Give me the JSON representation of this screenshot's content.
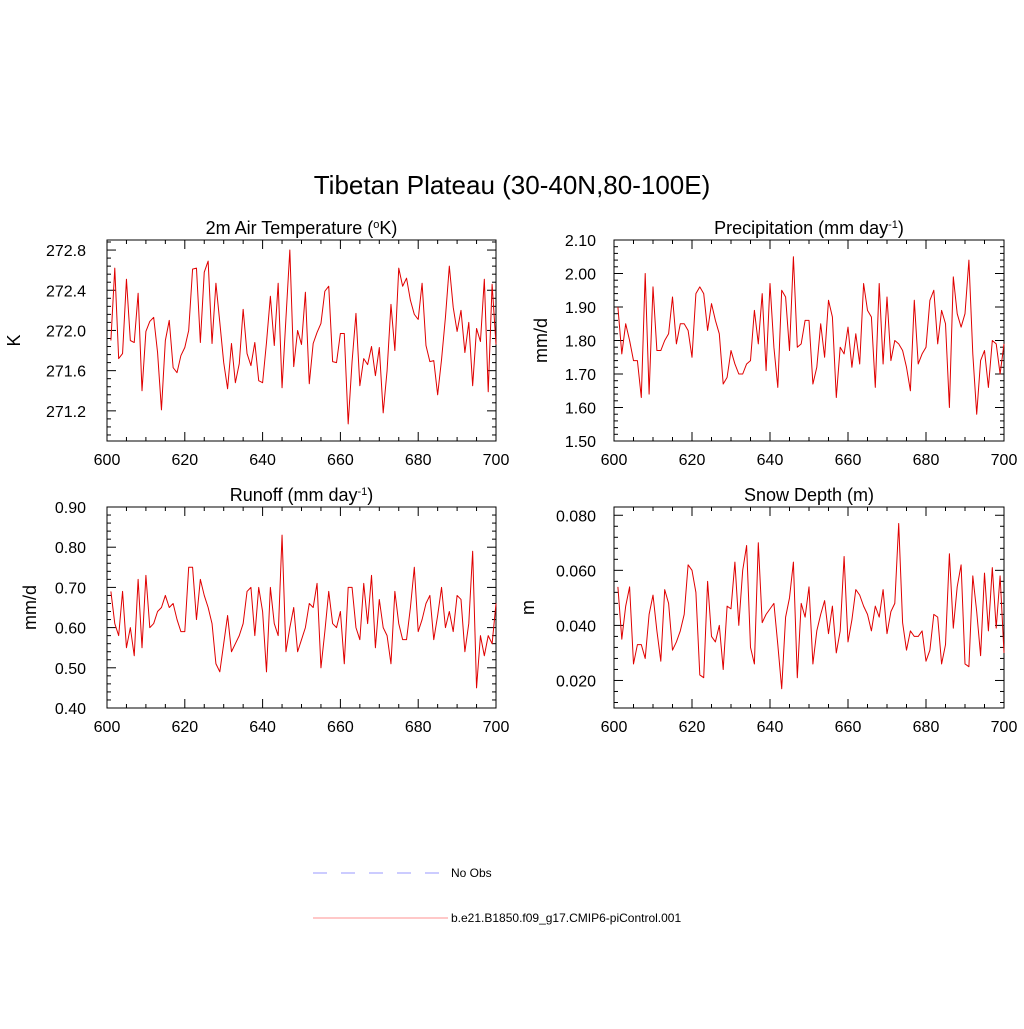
{
  "title": "Tibetan Plateau (30-40N,80-100E)",
  "legend": [
    {
      "label": "No Obs",
      "color": "#9999ff",
      "dash": true
    },
    {
      "label": "b.e21.B1850.f09_g17.CMIP6-piControl.001",
      "color": "#ff9090",
      "dash": false
    }
  ],
  "series_color": "#e00000",
  "chart_data": [
    {
      "type": "line",
      "title": {
        "pre": "2m Air Temperature (",
        "sup": "o",
        "post": "K)"
      },
      "ylabel": "K",
      "xlim": [
        600,
        700
      ],
      "ylim": [
        270.9,
        272.9
      ],
      "xticks": [
        600,
        620,
        640,
        660,
        680,
        700
      ],
      "xtick_labels": [
        "600",
        "620",
        "640",
        "660",
        "680",
        "700"
      ],
      "yticks": [
        271.2,
        271.6,
        272.0,
        272.4,
        272.8
      ],
      "ytick_labels": [
        "271.2",
        "271.6",
        "272.0",
        "272.4",
        "272.8"
      ],
      "x_start": 601,
      "values": [
        271.9,
        272.62,
        271.72,
        271.77,
        272.51,
        271.9,
        271.88,
        272.37,
        271.4,
        271.99,
        272.09,
        272.13,
        271.78,
        271.21,
        271.9,
        272.1,
        271.63,
        271.58,
        271.75,
        271.83,
        272.0,
        272.61,
        272.62,
        271.88,
        272.58,
        272.69,
        271.87,
        272.47,
        272.08,
        271.68,
        271.42,
        271.87,
        271.48,
        271.67,
        272.21,
        271.77,
        271.65,
        271.88,
        271.5,
        271.48,
        271.88,
        272.34,
        271.85,
        272.47,
        271.43,
        272.12,
        272.8,
        271.64,
        272.0,
        271.86,
        272.38,
        271.47,
        271.87,
        271.98,
        272.07,
        272.39,
        272.44,
        271.69,
        271.68,
        271.97,
        271.97,
        271.07,
        271.69,
        272.17,
        271.45,
        271.72,
        271.66,
        271.84,
        271.55,
        271.83,
        271.18,
        271.6,
        272.26,
        271.8,
        272.62,
        272.44,
        272.52,
        272.3,
        272.16,
        272.11,
        272.47,
        271.85,
        271.69,
        271.7,
        271.36,
        271.71,
        272.13,
        272.64,
        272.23,
        271.99,
        272.2,
        271.78,
        272.08,
        271.45,
        272.02,
        271.89,
        272.51,
        271.39,
        272.46,
        271.86
      ]
    },
    {
      "type": "line",
      "title": {
        "pre": "Precipitation (mm day",
        "sup": "-1",
        "post": ")"
      },
      "ylabel": "mm/d",
      "xlim": [
        600,
        700
      ],
      "ylim": [
        1.5,
        2.1
      ],
      "xticks": [
        600,
        620,
        640,
        660,
        680,
        700
      ],
      "xtick_labels": [
        "600",
        "620",
        "640",
        "660",
        "680",
        "700"
      ],
      "yticks": [
        1.5,
        1.6,
        1.7,
        1.8,
        1.9,
        2.0,
        2.1
      ],
      "ytick_labels": [
        "1.50",
        "1.60",
        "1.70",
        "1.80",
        "1.90",
        "2.00",
        "2.10"
      ],
      "x_start": 601,
      "values": [
        1.9,
        1.76,
        1.85,
        1.8,
        1.74,
        1.74,
        1.63,
        2.0,
        1.64,
        1.96,
        1.77,
        1.77,
        1.8,
        1.82,
        1.93,
        1.79,
        1.85,
        1.85,
        1.83,
        1.75,
        1.94,
        1.96,
        1.94,
        1.83,
        1.91,
        1.86,
        1.82,
        1.67,
        1.69,
        1.77,
        1.73,
        1.7,
        1.7,
        1.73,
        1.74,
        1.89,
        1.79,
        1.94,
        1.71,
        1.97,
        1.78,
        1.66,
        1.95,
        1.93,
        1.77,
        2.05,
        1.78,
        1.79,
        1.86,
        1.86,
        1.67,
        1.72,
        1.85,
        1.75,
        1.92,
        1.87,
        1.63,
        1.78,
        1.76,
        1.84,
        1.72,
        1.82,
        1.73,
        1.97,
        1.89,
        1.87,
        1.66,
        1.97,
        1.73,
        1.93,
        1.74,
        1.8,
        1.79,
        1.77,
        1.72,
        1.65,
        1.92,
        1.73,
        1.76,
        1.78,
        1.92,
        1.95,
        1.79,
        1.89,
        1.85,
        1.6,
        1.99,
        1.88,
        1.84,
        1.88,
        2.04,
        1.76,
        1.58,
        1.74,
        1.77,
        1.66,
        1.8,
        1.79,
        1.7,
        1.79
      ]
    },
    {
      "type": "line",
      "title": {
        "pre": "Runoff (mm day",
        "sup": "-1",
        "post": ")"
      },
      "ylabel": "mm/d",
      "xlim": [
        600,
        700
      ],
      "ylim": [
        0.4,
        0.9
      ],
      "xticks": [
        600,
        620,
        640,
        660,
        680,
        700
      ],
      "xtick_labels": [
        "600",
        "620",
        "640",
        "660",
        "680",
        "700"
      ],
      "yticks": [
        0.4,
        0.5,
        0.6,
        0.7,
        0.8,
        0.9
      ],
      "ytick_labels": [
        "0.40",
        "0.50",
        "0.60",
        "0.70",
        "0.80",
        "0.90"
      ],
      "x_start": 601,
      "values": [
        0.69,
        0.61,
        0.58,
        0.69,
        0.55,
        0.6,
        0.53,
        0.72,
        0.55,
        0.73,
        0.6,
        0.61,
        0.64,
        0.65,
        0.68,
        0.65,
        0.66,
        0.62,
        0.59,
        0.59,
        0.75,
        0.75,
        0.62,
        0.72,
        0.68,
        0.65,
        0.61,
        0.51,
        0.49,
        0.56,
        0.63,
        0.54,
        0.56,
        0.58,
        0.61,
        0.69,
        0.7,
        0.58,
        0.7,
        0.64,
        0.49,
        0.7,
        0.61,
        0.58,
        0.83,
        0.54,
        0.6,
        0.65,
        0.54,
        0.57,
        0.6,
        0.66,
        0.65,
        0.71,
        0.5,
        0.59,
        0.69,
        0.61,
        0.6,
        0.64,
        0.51,
        0.7,
        0.7,
        0.6,
        0.57,
        0.71,
        0.61,
        0.73,
        0.55,
        0.67,
        0.6,
        0.58,
        0.51,
        0.69,
        0.61,
        0.57,
        0.57,
        0.65,
        0.75,
        0.59,
        0.62,
        0.66,
        0.68,
        0.57,
        0.63,
        0.7,
        0.6,
        0.64,
        0.59,
        0.68,
        0.67,
        0.54,
        0.61,
        0.79,
        0.45,
        0.58,
        0.53,
        0.58,
        0.56,
        0.66
      ]
    },
    {
      "type": "line",
      "title": {
        "pre": "Snow Depth (m)",
        "sup": "",
        "post": ""
      },
      "ylabel": "m",
      "xlim": [
        600,
        700
      ],
      "ylim": [
        0.01,
        0.083
      ],
      "xticks": [
        600,
        620,
        640,
        660,
        680,
        700
      ],
      "xtick_labels": [
        "600",
        "620",
        "640",
        "660",
        "680",
        "700"
      ],
      "yticks": [
        0.02,
        0.04,
        0.06,
        0.08
      ],
      "ytick_labels": [
        "0.020",
        "0.040",
        "0.060",
        "0.080"
      ],
      "x_start": 601,
      "values": [
        0.054,
        0.035,
        0.047,
        0.054,
        0.026,
        0.033,
        0.033,
        0.028,
        0.044,
        0.051,
        0.038,
        0.027,
        0.053,
        0.048,
        0.031,
        0.034,
        0.038,
        0.044,
        0.062,
        0.06,
        0.052,
        0.022,
        0.021,
        0.056,
        0.036,
        0.034,
        0.04,
        0.024,
        0.047,
        0.046,
        0.063,
        0.04,
        0.06,
        0.069,
        0.032,
        0.026,
        0.07,
        0.041,
        0.044,
        0.046,
        0.048,
        0.033,
        0.017,
        0.043,
        0.05,
        0.063,
        0.021,
        0.048,
        0.043,
        0.054,
        0.026,
        0.038,
        0.044,
        0.049,
        0.037,
        0.047,
        0.03,
        0.038,
        0.065,
        0.034,
        0.042,
        0.053,
        0.051,
        0.047,
        0.044,
        0.038,
        0.047,
        0.043,
        0.053,
        0.037,
        0.045,
        0.048,
        0.077,
        0.041,
        0.031,
        0.038,
        0.036,
        0.036,
        0.038,
        0.027,
        0.031,
        0.044,
        0.043,
        0.026,
        0.033,
        0.066,
        0.039,
        0.054,
        0.062,
        0.026,
        0.025,
        0.058,
        0.045,
        0.029,
        0.059,
        0.038,
        0.061,
        0.039,
        0.058,
        0.03
      ]
    }
  ]
}
